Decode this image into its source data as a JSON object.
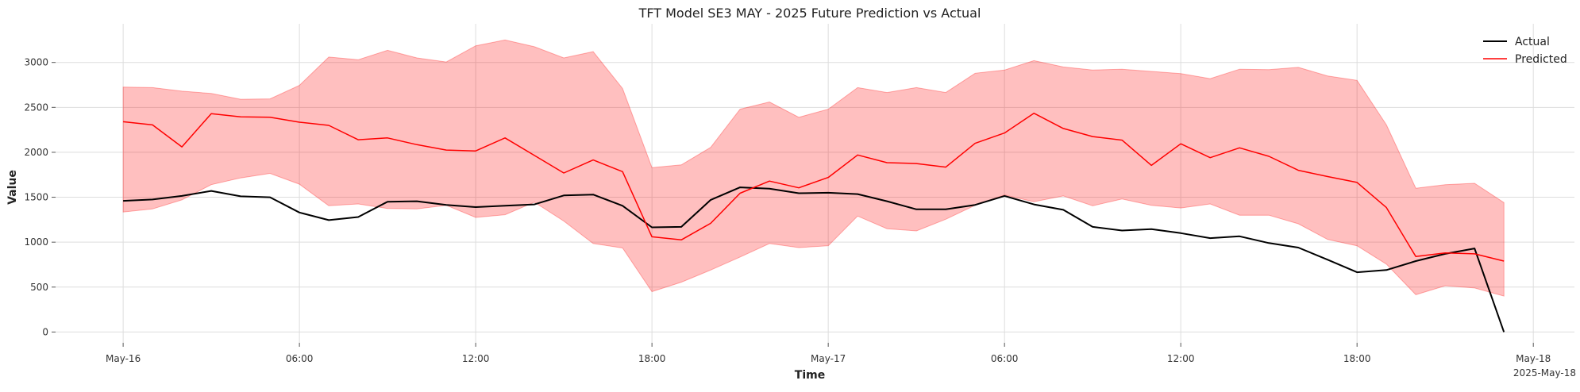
{
  "chart_data": {
    "type": "line",
    "title": "TFT Model SE3 MAY - 2025 Future Prediction vs Actual",
    "xlabel": "Time",
    "ylabel": "Value",
    "x_start": "2025-05-16 00:00",
    "x_step_hours": 1,
    "x_ticks": [
      {
        "label": "May-16",
        "hour": 0
      },
      {
        "label": "06:00",
        "hour": 6
      },
      {
        "label": "12:00",
        "hour": 12
      },
      {
        "label": "18:00",
        "hour": 18
      },
      {
        "label": "May-17",
        "hour": 24
      },
      {
        "label": "06:00",
        "hour": 30
      },
      {
        "label": "12:00",
        "hour": 36
      },
      {
        "label": "18:00",
        "hour": 42
      },
      {
        "label": "May-18",
        "hour": 48
      }
    ],
    "x_offset_label": "2025-May-18",
    "xlim_hours": [
      -2.3,
      49.4
    ],
    "ylim": [
      -120,
      3430
    ],
    "y_ticks": [
      0,
      500,
      1000,
      1500,
      2000,
      2500,
      3000
    ],
    "grid": true,
    "legend_position": "top-right",
    "series": [
      {
        "name": "Actual",
        "color": "#000000",
        "values": [
          1460,
          1475,
          1515,
          1570,
          1510,
          1500,
          1330,
          1245,
          1280,
          1450,
          1455,
          1415,
          1390,
          1405,
          1420,
          1520,
          1530,
          1405,
          1165,
          1170,
          1470,
          1610,
          1595,
          1545,
          1550,
          1535,
          1455,
          1365,
          1365,
          1415,
          1515,
          1420,
          1360,
          1170,
          1130,
          1145,
          1100,
          1045,
          1065,
          990,
          940,
          805,
          665,
          690,
          790,
          870,
          930,
          0
        ]
      },
      {
        "name": "Predicted",
        "color": "#ff0000",
        "values": [
          2340,
          2305,
          2060,
          2430,
          2395,
          2390,
          2335,
          2300,
          2140,
          2160,
          2085,
          2025,
          2015,
          2160,
          1965,
          1770,
          1915,
          1785,
          1060,
          1025,
          1210,
          1545,
          1680,
          1605,
          1720,
          1970,
          1885,
          1875,
          1835,
          2100,
          2215,
          2435,
          2265,
          2175,
          2135,
          1855,
          2095,
          1940,
          2050,
          1955,
          1800,
          1730,
          1665,
          1385,
          840,
          880,
          870,
          790
        ]
      }
    ],
    "interval": {
      "color": "#ff0000",
      "opacity": 0.25,
      "upper": [
        2725,
        2720,
        2680,
        2655,
        2590,
        2595,
        2745,
        3060,
        3030,
        3135,
        3050,
        3005,
        3185,
        3250,
        3175,
        3050,
        3120,
        2710,
        1830,
        1860,
        2055,
        2480,
        2560,
        2390,
        2480,
        2720,
        2665,
        2720,
        2665,
        2880,
        2915,
        3020,
        2950,
        2915,
        2925,
        2900,
        2875,
        2820,
        2925,
        2920,
        2945,
        2850,
        2800,
        2305,
        1600,
        1640,
        1655,
        1440
      ],
      "lower": [
        1335,
        1370,
        1470,
        1640,
        1715,
        1765,
        1645,
        1405,
        1425,
        1375,
        1370,
        1410,
        1275,
        1305,
        1445,
        1235,
        985,
        935,
        450,
        555,
        690,
        835,
        985,
        940,
        960,
        1290,
        1150,
        1125,
        1255,
        1410,
        1525,
        1450,
        1515,
        1405,
        1480,
        1410,
        1380,
        1425,
        1300,
        1300,
        1205,
        1030,
        960,
        755,
        415,
        515,
        490,
        400
      ]
    }
  }
}
